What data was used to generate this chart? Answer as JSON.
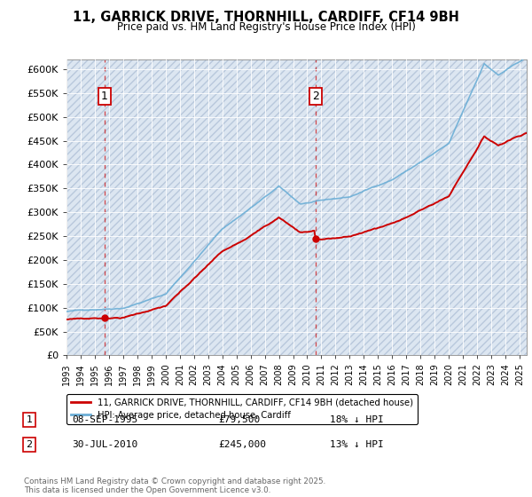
{
  "title_line1": "11, GARRICK DRIVE, THORNHILL, CARDIFF, CF14 9BH",
  "title_line2": "Price paid vs. HM Land Registry's House Price Index (HPI)",
  "background_color": "#dce6f1",
  "plot_bg_color": "#dce6f1",
  "ylim": [
    0,
    620000
  ],
  "yticks": [
    0,
    50000,
    100000,
    150000,
    200000,
    250000,
    300000,
    350000,
    400000,
    450000,
    500000,
    550000,
    600000
  ],
  "ytick_labels": [
    "£0",
    "£50K",
    "£100K",
    "£150K",
    "£200K",
    "£250K",
    "£300K",
    "£350K",
    "£400K",
    "£450K",
    "£500K",
    "£550K",
    "£600K"
  ],
  "hpi_color": "#6baed6",
  "price_color": "#cc0000",
  "purchase1_date": 1995.69,
  "purchase1_price": 79500,
  "purchase1_label": "1",
  "purchase2_date": 2010.58,
  "purchase2_price": 245000,
  "purchase2_label": "2",
  "legend_entry1": "11, GARRICK DRIVE, THORNHILL, CARDIFF, CF14 9BH (detached house)",
  "legend_entry2": "HPI: Average price, detached house, Cardiff",
  "table_row1_num": "1",
  "table_row1_date": "08-SEP-1995",
  "table_row1_price": "£79,500",
  "table_row1_hpi": "18% ↓ HPI",
  "table_row2_num": "2",
  "table_row2_date": "30-JUL-2010",
  "table_row2_price": "£245,000",
  "table_row2_hpi": "13% ↓ HPI",
  "footnote": "Contains HM Land Registry data © Crown copyright and database right 2025.\nThis data is licensed under the Open Government Licence v3.0.",
  "xmin": 1993,
  "xmax": 2025.5,
  "figsize": [
    6.0,
    5.6
  ],
  "dpi": 100
}
